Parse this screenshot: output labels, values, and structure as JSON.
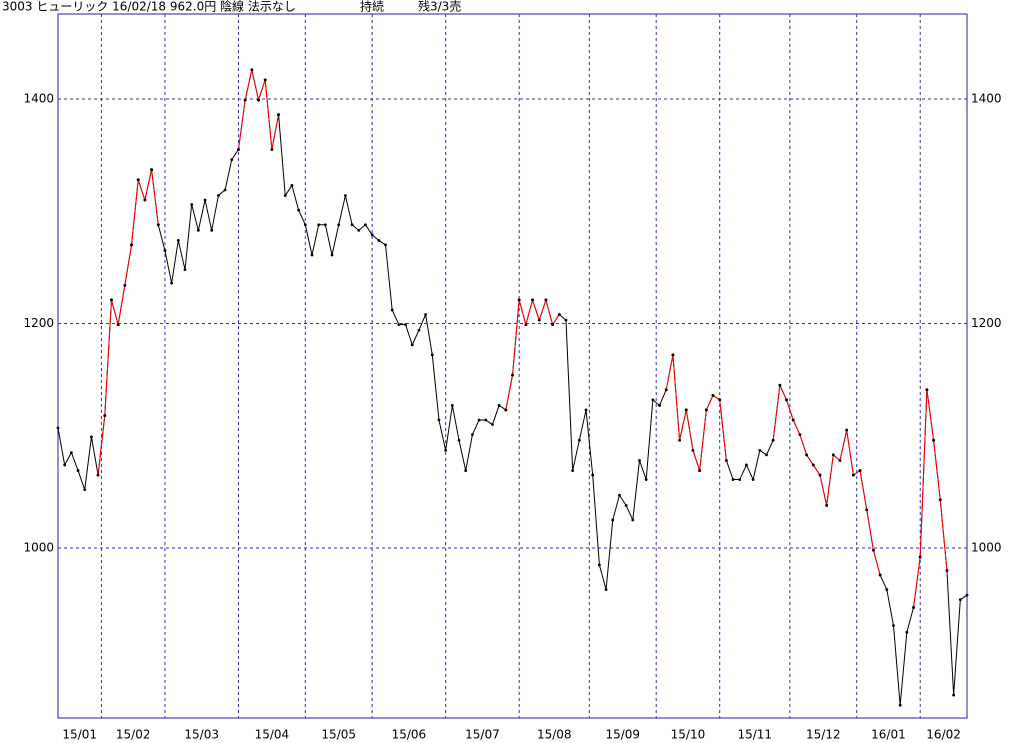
{
  "chart_data": {
    "type": "line",
    "title": "3003 ヒューリック 16/02/18 962.0円 陰線 法示なし",
    "status": "持続",
    "remaining": "残3/3売",
    "xlim": [
      0,
      272
    ],
    "xticks": [
      {
        "value": 0,
        "label": "15/01"
      },
      {
        "value": 13,
        "label": "15/02"
      },
      {
        "value": 32,
        "label": "15/03"
      },
      {
        "value": 54,
        "label": "15/04"
      },
      {
        "value": 74,
        "label": "15/05"
      },
      {
        "value": 94,
        "label": "15/06"
      },
      {
        "value": 116,
        "label": "15/07"
      },
      {
        "value": 138,
        "label": "15/08"
      },
      {
        "value": 159,
        "label": "15/09"
      },
      {
        "value": 179,
        "label": "15/10"
      },
      {
        "value": 198,
        "label": "15/11"
      },
      {
        "value": 219,
        "label": "15/12"
      },
      {
        "value": 239,
        "label": "16/01"
      },
      {
        "value": 258,
        "label": "16/02"
      }
    ],
    "ylim": [
      848.6,
      1475.7
    ],
    "yticks": [
      1000,
      1200,
      1400
    ],
    "grid": true,
    "series": [
      {
        "color": "#000000",
        "x": [
          0,
          2,
          4,
          6,
          8,
          10,
          12,
          14,
          16,
          18,
          20,
          22,
          24,
          26,
          28,
          30,
          32,
          34,
          36,
          38,
          40,
          42,
          44,
          46,
          48,
          50,
          52,
          54,
          56,
          58,
          60,
          62,
          64,
          66,
          68,
          70,
          72,
          74,
          76,
          78,
          80,
          82,
          84,
          86,
          88,
          90,
          92,
          94,
          96,
          98,
          100,
          102,
          104,
          106,
          108,
          110,
          112,
          114,
          116,
          118,
          120,
          122,
          124,
          126,
          128,
          130,
          132,
          134,
          136,
          138,
          140,
          142,
          144,
          146,
          148,
          150,
          152,
          154,
          156,
          158,
          160,
          162,
          164,
          166,
          168,
          170,
          172,
          174,
          176,
          178,
          180,
          182,
          184,
          186,
          188,
          190,
          192,
          194,
          196,
          198,
          200,
          202,
          204,
          206,
          208,
          210,
          212,
          214,
          216,
          218,
          220,
          222,
          224,
          226,
          228,
          230,
          232,
          234,
          236,
          238,
          240,
          242,
          244,
          246,
          248,
          250,
          252,
          254,
          256,
          258,
          260,
          262,
          264,
          266,
          268,
          270,
          272
        ],
        "values": [
          1107,
          1074,
          1085,
          1069,
          1052,
          1099,
          1065,
          1118,
          1221,
          1199,
          1234,
          1270,
          1328,
          1310,
          1337,
          1288,
          1265,
          1236,
          1274,
          1248,
          1306,
          1283,
          1310,
          1283,
          1314,
          1319,
          1346,
          1355,
          1399,
          1426,
          1399,
          1417,
          1355,
          1386,
          1314,
          1323,
          1301,
          1288,
          1261,
          1288,
          1288,
          1261,
          1288,
          1314,
          1288,
          1283,
          1288,
          1279,
          1274,
          1270,
          1212,
          1199,
          1199,
          1181,
          1194,
          1208,
          1172,
          1114,
          1087,
          1127,
          1096,
          1069,
          1101,
          1114,
          1114,
          1110,
          1127,
          1123,
          1154,
          1221,
          1199,
          1221,
          1203,
          1221,
          1199,
          1208,
          1203,
          1069,
          1096,
          1123,
          1065,
          985,
          963,
          1025,
          1047,
          1038,
          1025,
          1078,
          1061,
          1132,
          1127,
          1141,
          1172,
          1096,
          1123,
          1087,
          1069,
          1123,
          1136,
          1132,
          1078,
          1061,
          1061,
          1074,
          1061,
          1087,
          1083,
          1096,
          1145,
          1132,
          1114,
          1101,
          1083,
          1074,
          1065,
          1038,
          1083,
          1078,
          1105,
          1065,
          1069,
          1034,
          998,
          976,
          963,
          931,
          860,
          925,
          947,
          992,
          1141,
          1096,
          1043,
          980,
          869,
          954,
          958
        ]
      },
      {
        "color": "#ff0000",
        "x": [
          12,
          14,
          16,
          18,
          20,
          22,
          24,
          26,
          28,
          30,
          null,
          54,
          56,
          58,
          60,
          62,
          64,
          66,
          null,
          134,
          136,
          138,
          140,
          142,
          144,
          146,
          148,
          150,
          null,
          182,
          184,
          186,
          188,
          190,
          192,
          194,
          196,
          198,
          200,
          null,
          214,
          216,
          218,
          220,
          222,
          224,
          226,
          228,
          230,
          232,
          234,
          236,
          238,
          240,
          242,
          244,
          246,
          null,
          256,
          258,
          260,
          262,
          264,
          266
        ],
        "values": [
          1065,
          1118,
          1221,
          1199,
          1234,
          1270,
          1328,
          1310,
          1337,
          1288,
          null,
          1355,
          1399,
          1426,
          1399,
          1417,
          1355,
          1386,
          null,
          1123,
          1154,
          1221,
          1199,
          1221,
          1203,
          1221,
          1199,
          1208,
          null,
          1141,
          1172,
          1096,
          1123,
          1087,
          1069,
          1123,
          1136,
          1132,
          1078,
          null,
          1096,
          1145,
          1132,
          1114,
          1101,
          1083,
          1074,
          1065,
          1038,
          1083,
          1078,
          1105,
          1065,
          1069,
          1034,
          998,
          976,
          null,
          947,
          992,
          1141,
          1096,
          1043,
          980
        ]
      }
    ]
  }
}
